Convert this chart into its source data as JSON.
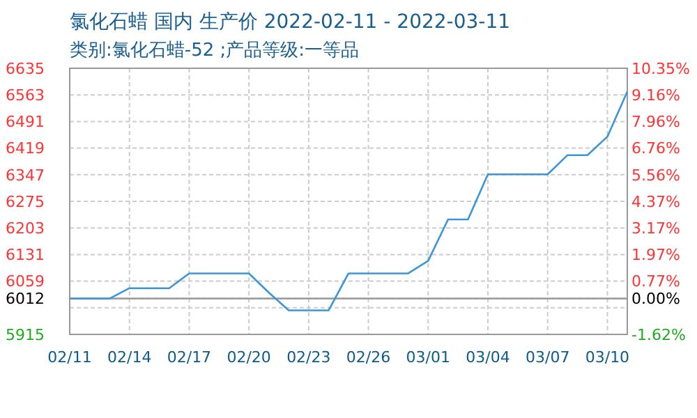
{
  "chart_data": {
    "type": "line",
    "title": "氯化石蜡 国内 生产价 2022-02-11 - 2022-03-11",
    "subtitle": "类别:氯化石蜡-52 ;产品等级:一等品",
    "categories": [
      "02/11",
      null,
      null,
      "02/14",
      null,
      null,
      "02/17",
      null,
      null,
      "02/20",
      null,
      null,
      "02/23",
      null,
      null,
      "02/26",
      null,
      null,
      "03/01",
      null,
      null,
      "03/04",
      null,
      null,
      "03/07",
      null,
      null,
      "03/10",
      null
    ],
    "series": [
      {
        "color": "#3a96d6",
        "values": [
          6012,
          6012,
          6012,
          6040,
          6040,
          6040,
          6080,
          6080,
          6080,
          6080,
          6028,
          5980,
          5980,
          5980,
          6080,
          6080,
          6080,
          6080,
          6114,
          6226,
          6226,
          6348,
          6348,
          6348,
          6348,
          6400,
          6400,
          6450,
          6572
        ]
      }
    ],
    "ylim": [
      5915,
      6635
    ],
    "yticks": [
      5915,
      {
        "value": 5987,
        "label": null
      },
      6012,
      6059,
      6131,
      6203,
      6275,
      6347,
      6419,
      6491,
      6563,
      6635
    ],
    "y2lim": [
      -1.62,
      10.35
    ],
    "y2ticks": [
      {
        "value": -1.62,
        "label": "-1.62%"
      },
      {
        "value": 0,
        "label": "0.00%"
      },
      {
        "value": 0.77,
        "label": "0.77%"
      },
      {
        "value": 1.97,
        "label": "1.97%"
      },
      {
        "value": 3.17,
        "label": "3.17%"
      },
      {
        "value": 4.37,
        "label": "4.37%"
      },
      {
        "value": 5.56,
        "label": "5.56%"
      },
      {
        "value": 6.76,
        "label": "6.76%"
      },
      {
        "value": 7.96,
        "label": "7.96%"
      },
      {
        "value": 9.16,
        "label": "9.16%"
      },
      {
        "value": 10.35,
        "label": "10.35%"
      }
    ],
    "ref_lines": [
      {
        "axis": "y",
        "value": 6012,
        "color": "#999999"
      }
    ],
    "grid": true,
    "line_style": "solid",
    "marker": "none"
  }
}
